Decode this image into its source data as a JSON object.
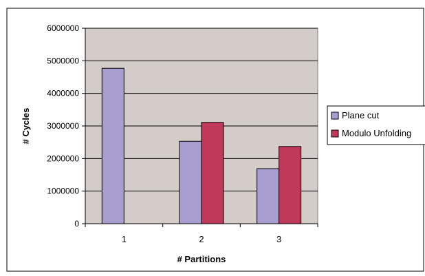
{
  "chart_data": {
    "type": "bar",
    "categories": [
      "1",
      "2",
      "3"
    ],
    "series": [
      {
        "name": "Plane cut",
        "values": [
          4770000,
          2530000,
          1690000
        ],
        "color": "#a89ed0"
      },
      {
        "name": "Modulo Unfolding",
        "values": [
          null,
          3110000,
          2370000
        ],
        "color": "#c0395a"
      }
    ],
    "xlabel": "# Partitions",
    "ylabel": "# Cycles",
    "ylim": [
      0,
      6000000
    ],
    "yticks": [
      0,
      1000000,
      2000000,
      3000000,
      4000000,
      5000000,
      6000000
    ],
    "ytick_labels": [
      "0",
      "1000000",
      "2000000",
      "3000000",
      "4000000",
      "5000000",
      "6000000"
    ],
    "grid": true,
    "legend": "right",
    "plot_background": "#d4ccc9"
  }
}
